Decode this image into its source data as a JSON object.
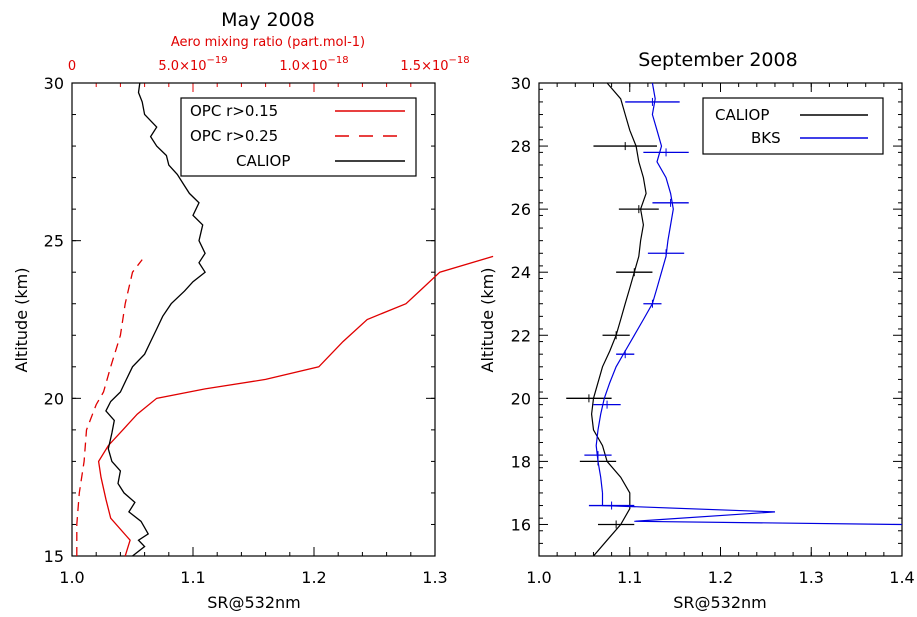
{
  "chart_data": [
    {
      "type": "line",
      "title": "May 2008",
      "xlabel": "SR@532nm",
      "ylabel": "Altitude (km)",
      "xlim": [
        1.0,
        1.3
      ],
      "ylim": [
        15,
        30
      ],
      "xticks": [
        1.0,
        1.1,
        1.2,
        1.3
      ],
      "xtick_labels": [
        "1.0",
        "1.1",
        "1.2",
        "1.3"
      ],
      "yticks": [
        15,
        20,
        25,
        30
      ],
      "ytick_labels": [
        "15",
        "20",
        "25",
        "30"
      ],
      "top_axis": {
        "label": "Aero mixing ratio (part.mol-1)",
        "lim": [
          0,
          1.5e-18
        ],
        "ticks": [
          0,
          5e-19,
          1e-18,
          1.5e-18
        ],
        "tick_labels": [
          "0",
          "5.0×10",
          "1.0×10",
          "1.5×10"
        ],
        "tick_exponents": [
          "",
          "−19",
          "−18",
          "−18"
        ],
        "color": "#e00000"
      },
      "legend_position": "top-right",
      "series": [
        {
          "name": "OPC r>0.15",
          "axis": "top",
          "color": "#e00000",
          "style": "solid",
          "points": [
            [
              2.2e-19,
              15.0
            ],
            [
              2.4e-19,
              15.5
            ],
            [
              1.6e-19,
              16.2
            ],
            [
              1.4e-19,
              16.8
            ],
            [
              1.2e-19,
              17.5
            ],
            [
              1.1e-19,
              18.0
            ],
            [
              1.5e-19,
              18.5
            ],
            [
              2.1e-19,
              19.0
            ],
            [
              2.7e-19,
              19.5
            ],
            [
              3.5e-19,
              20.0
            ],
            [
              5.5e-19,
              20.3
            ],
            [
              8e-19,
              20.6
            ],
            [
              1.02e-18,
              21.0
            ],
            [
              1.12e-18,
              21.8
            ],
            [
              1.22e-18,
              22.5
            ],
            [
              1.38e-18,
              23.0
            ],
            [
              1.45e-18,
              23.5
            ],
            [
              1.52e-18,
              24.0
            ],
            [
              1.74e-18,
              24.5
            ]
          ]
        },
        {
          "name": "OPC r>0.25",
          "axis": "top",
          "color": "#e00000",
          "style": "dashed",
          "points": [
            [
              2e-20,
              15.0
            ],
            [
              2e-20,
              16.0
            ],
            [
              3e-20,
              17.0
            ],
            [
              5e-20,
              18.0
            ],
            [
              6e-20,
              19.0
            ],
            [
              1e-19,
              19.8
            ],
            [
              1.3e-19,
              20.2
            ],
            [
              1.6e-19,
              21.0
            ],
            [
              2e-19,
              22.0
            ],
            [
              2.2e-19,
              23.0
            ],
            [
              2.5e-19,
              24.0
            ],
            [
              2.9e-19,
              24.4
            ]
          ]
        },
        {
          "name": "CALIOP",
          "axis": "bottom",
          "color": "#000000",
          "style": "solid",
          "points": [
            [
              1.05,
              15.0
            ],
            [
              1.06,
              15.3
            ],
            [
              1.055,
              15.5
            ],
            [
              1.063,
              15.7
            ],
            [
              1.06,
              15.9
            ],
            [
              1.057,
              16.1
            ],
            [
              1.047,
              16.4
            ],
            [
              1.052,
              16.7
            ],
            [
              1.043,
              17.0
            ],
            [
              1.038,
              17.3
            ],
            [
              1.04,
              17.7
            ],
            [
              1.033,
              18.0
            ],
            [
              1.03,
              18.4
            ],
            [
              1.033,
              18.9
            ],
            [
              1.035,
              19.3
            ],
            [
              1.028,
              19.6
            ],
            [
              1.032,
              19.9
            ],
            [
              1.04,
              20.2
            ],
            [
              1.045,
              20.6
            ],
            [
              1.05,
              21.0
            ],
            [
              1.06,
              21.4
            ],
            [
              1.065,
              21.8
            ],
            [
              1.07,
              22.2
            ],
            [
              1.075,
              22.6
            ],
            [
              1.082,
              23.0
            ],
            [
              1.093,
              23.4
            ],
            [
              1.1,
              23.7
            ],
            [
              1.11,
              24.0
            ],
            [
              1.105,
              24.3
            ],
            [
              1.11,
              24.6
            ],
            [
              1.105,
              25.0
            ],
            [
              1.108,
              25.5
            ],
            [
              1.1,
              25.8
            ],
            [
              1.105,
              26.2
            ],
            [
              1.097,
              26.5
            ],
            [
              1.092,
              26.8
            ],
            [
              1.087,
              27.1
            ],
            [
              1.08,
              27.4
            ],
            [
              1.078,
              27.7
            ],
            [
              1.07,
              28.0
            ],
            [
              1.065,
              28.3
            ],
            [
              1.07,
              28.6
            ],
            [
              1.06,
              29.0
            ],
            [
              1.058,
              29.4
            ],
            [
              1.055,
              29.7
            ],
            [
              1.056,
              30.0
            ]
          ]
        }
      ]
    },
    {
      "type": "line",
      "title": "September 2008",
      "xlabel": "SR@532nm",
      "ylabel": "Altitude (km)",
      "xlim": [
        1.0,
        1.4
      ],
      "ylim": [
        15,
        30
      ],
      "xticks": [
        1.0,
        1.1,
        1.2,
        1.3,
        1.4
      ],
      "xtick_labels": [
        "1.0",
        "1.1",
        "1.2",
        "1.3",
        "1.4"
      ],
      "yticks": [
        16,
        18,
        20,
        22,
        24,
        26,
        28,
        30
      ],
      "ytick_labels": [
        "16",
        "18",
        "20",
        "22",
        "24",
        "26",
        "28",
        "30"
      ],
      "legend_position": "top-right",
      "series": [
        {
          "name": "CALIOP",
          "color": "#000000",
          "points": [
            [
              1.06,
              15.0
            ],
            [
              1.075,
              15.5
            ],
            [
              1.09,
              16.0
            ],
            [
              1.1,
              16.5
            ],
            [
              1.1,
              17.0
            ],
            [
              1.09,
              17.5
            ],
            [
              1.075,
              18.0
            ],
            [
              1.07,
              18.5
            ],
            [
              1.06,
              19.0
            ],
            [
              1.058,
              19.5
            ],
            [
              1.06,
              20.0
            ],
            [
              1.065,
              20.5
            ],
            [
              1.07,
              21.0
            ],
            [
              1.078,
              21.5
            ],
            [
              1.085,
              22.0
            ],
            [
              1.09,
              22.5
            ],
            [
              1.095,
              23.0
            ],
            [
              1.1,
              23.5
            ],
            [
              1.105,
              24.0
            ],
            [
              1.11,
              24.5
            ],
            [
              1.112,
              25.0
            ],
            [
              1.115,
              25.5
            ],
            [
              1.112,
              26.0
            ],
            [
              1.118,
              26.5
            ],
            [
              1.115,
              27.0
            ],
            [
              1.11,
              27.5
            ],
            [
              1.107,
              28.0
            ],
            [
              1.1,
              28.5
            ],
            [
              1.095,
              29.0
            ],
            [
              1.09,
              29.5
            ],
            [
              1.075,
              30.0
            ]
          ],
          "error_bars": [
            {
              "y": 16.0,
              "x": 1.085,
              "err": 0.02
            },
            {
              "y": 18.0,
              "x": 1.065,
              "err": 0.02
            },
            {
              "y": 20.0,
              "x": 1.055,
              "err": 0.025
            },
            {
              "y": 22.0,
              "x": 1.085,
              "err": 0.015
            },
            {
              "y": 24.0,
              "x": 1.105,
              "err": 0.02
            },
            {
              "y": 26.0,
              "x": 1.11,
              "err": 0.022
            },
            {
              "y": 28.0,
              "x": 1.095,
              "err": 0.035
            }
          ]
        },
        {
          "name": "BKS",
          "color": "#0000e0",
          "points": [
            [
              1.07,
              17.0
            ],
            [
              1.068,
              17.5
            ],
            [
              1.065,
              18.0
            ],
            [
              1.063,
              18.5
            ],
            [
              1.065,
              19.0
            ],
            [
              1.068,
              19.5
            ],
            [
              1.072,
              20.0
            ],
            [
              1.078,
              20.5
            ],
            [
              1.085,
              21.0
            ],
            [
              1.095,
              21.5
            ],
            [
              1.105,
              22.0
            ],
            [
              1.115,
              22.5
            ],
            [
              1.125,
              23.0
            ],
            [
              1.13,
              23.5
            ],
            [
              1.135,
              24.0
            ],
            [
              1.14,
              24.5
            ],
            [
              1.142,
              25.0
            ],
            [
              1.145,
              25.5
            ],
            [
              1.148,
              26.0
            ],
            [
              1.145,
              26.5
            ],
            [
              1.14,
              27.0
            ],
            [
              1.13,
              27.5
            ],
            [
              1.135,
              28.0
            ],
            [
              1.13,
              28.5
            ],
            [
              1.125,
              29.0
            ],
            [
              1.128,
              29.5
            ],
            [
              1.125,
              30.0
            ]
          ],
          "spike_points": [
            [
              1.07,
              17.0
            ],
            [
              1.07,
              16.6
            ],
            [
              1.26,
              16.4
            ],
            [
              1.105,
              16.1
            ],
            [
              1.4,
              16.0
            ]
          ],
          "error_bars": [
            {
              "y": 16.6,
              "x": 1.08,
              "err": 0.025
            },
            {
              "y": 18.2,
              "x": 1.065,
              "err": 0.015
            },
            {
              "y": 19.8,
              "x": 1.075,
              "err": 0.015
            },
            {
              "y": 21.4,
              "x": 1.095,
              "err": 0.01
            },
            {
              "y": 23.0,
              "x": 1.125,
              "err": 0.01
            },
            {
              "y": 24.6,
              "x": 1.14,
              "err": 0.02
            },
            {
              "y": 26.2,
              "x": 1.145,
              "err": 0.02
            },
            {
              "y": 27.8,
              "x": 1.14,
              "err": 0.025
            },
            {
              "y": 29.4,
              "x": 1.125,
              "err": 0.03
            }
          ]
        }
      ]
    }
  ]
}
